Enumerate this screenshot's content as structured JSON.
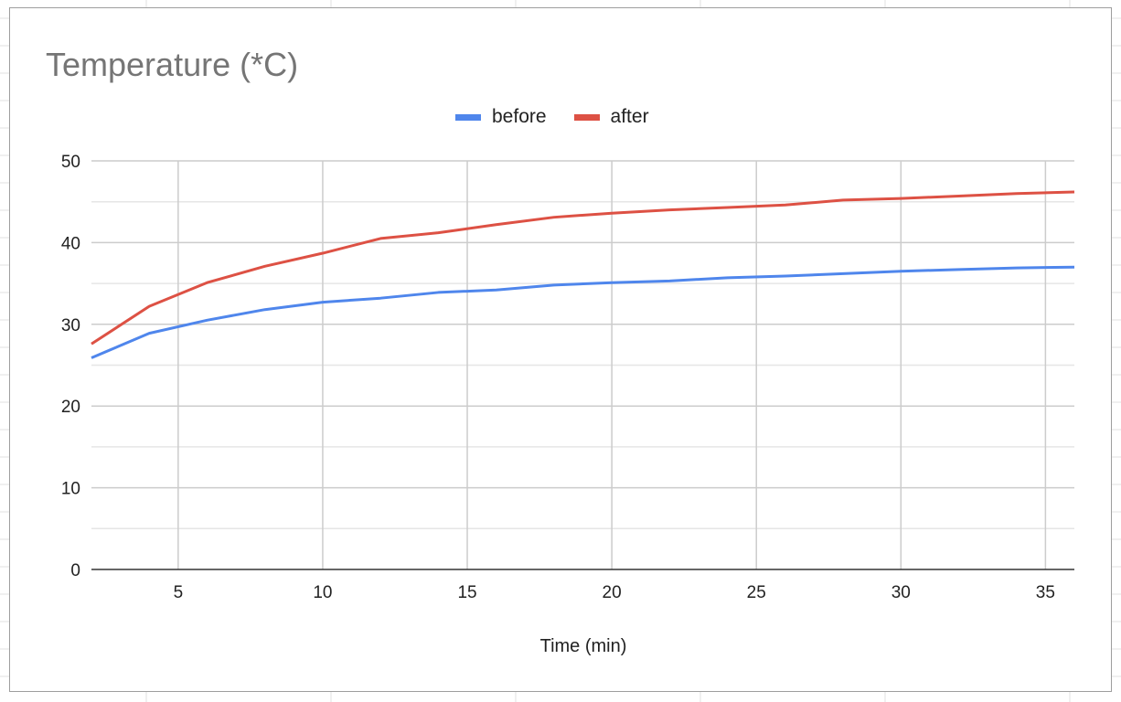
{
  "chart_data": {
    "type": "line",
    "title": "Temperature (*C)",
    "xlabel": "Time (min)",
    "ylabel": "",
    "xlim": [
      2,
      36
    ],
    "ylim": [
      0,
      50
    ],
    "xticks": [
      5,
      10,
      15,
      20,
      25,
      30,
      35
    ],
    "yticks": [
      0,
      10,
      20,
      30,
      40,
      50
    ],
    "grid": true,
    "legend_position": "top",
    "x": [
      2,
      4,
      6,
      8,
      10,
      12,
      14,
      16,
      18,
      20,
      22,
      24,
      26,
      28,
      30,
      32,
      34,
      36
    ],
    "series": [
      {
        "name": "before",
        "color": "#4f86ec",
        "values": [
          25.9,
          28.9,
          30.5,
          31.8,
          32.7,
          33.2,
          33.9,
          34.2,
          34.8,
          35.1,
          35.3,
          35.7,
          35.9,
          36.2,
          36.5,
          36.7,
          36.9,
          37.0
        ]
      },
      {
        "name": "after",
        "color": "#dd5144",
        "values": [
          27.6,
          32.2,
          35.1,
          37.1,
          38.7,
          40.5,
          41.2,
          42.2,
          43.1,
          43.6,
          44.0,
          44.3,
          44.6,
          45.2,
          45.4,
          45.7,
          46.0,
          46.2
        ]
      }
    ]
  }
}
